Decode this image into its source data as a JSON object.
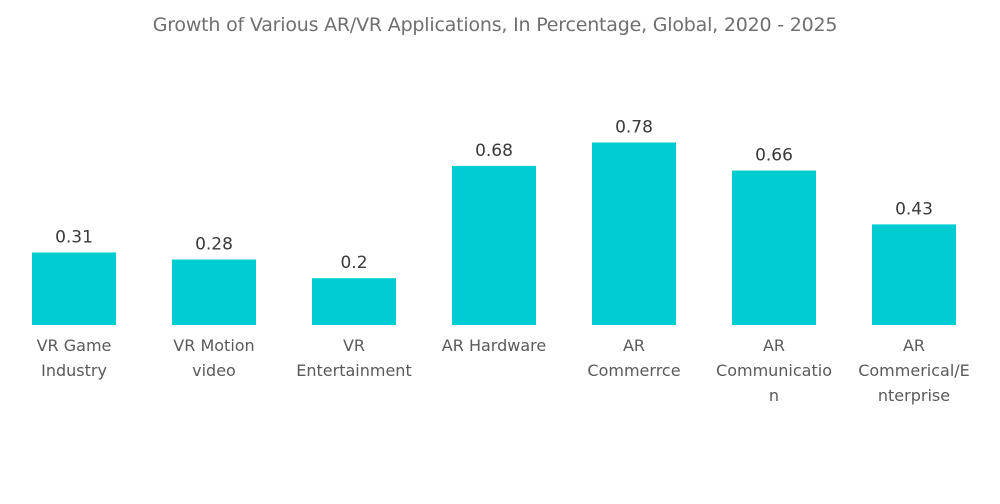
{
  "title": "Growth of Various AR/VR Applications, In Percentage, Global, 2020 - 2025",
  "colors": {
    "bar": "#00CDD1",
    "value_text": "#3a3a3a",
    "category_text": "#5a5a5a",
    "title_text": "#6f6f6f"
  },
  "chart_data": {
    "type": "bar",
    "title": "Growth of Various AR/VR Applications, In Percentage, Global, 2020 - 2025",
    "xlabel": "",
    "ylabel": "",
    "ylim": [
      0,
      1
    ],
    "grid": false,
    "legend": "none",
    "categories": [
      [
        "VR Game",
        "Industry"
      ],
      [
        "VR Motion",
        "video"
      ],
      [
        "VR",
        "Entertainment"
      ],
      [
        "AR Hardware"
      ],
      [
        "AR",
        "Commerrce"
      ],
      [
        "AR",
        "Communicatio",
        "n"
      ],
      [
        "AR",
        "Commerical/E",
        "nterprise"
      ]
    ],
    "values": [
      0.31,
      0.28,
      0.2,
      0.68,
      0.78,
      0.66,
      0.43
    ],
    "value_labels": [
      "0.31",
      "0.28",
      "0.2",
      "0.68",
      "0.78",
      "0.66",
      "0.43"
    ]
  }
}
